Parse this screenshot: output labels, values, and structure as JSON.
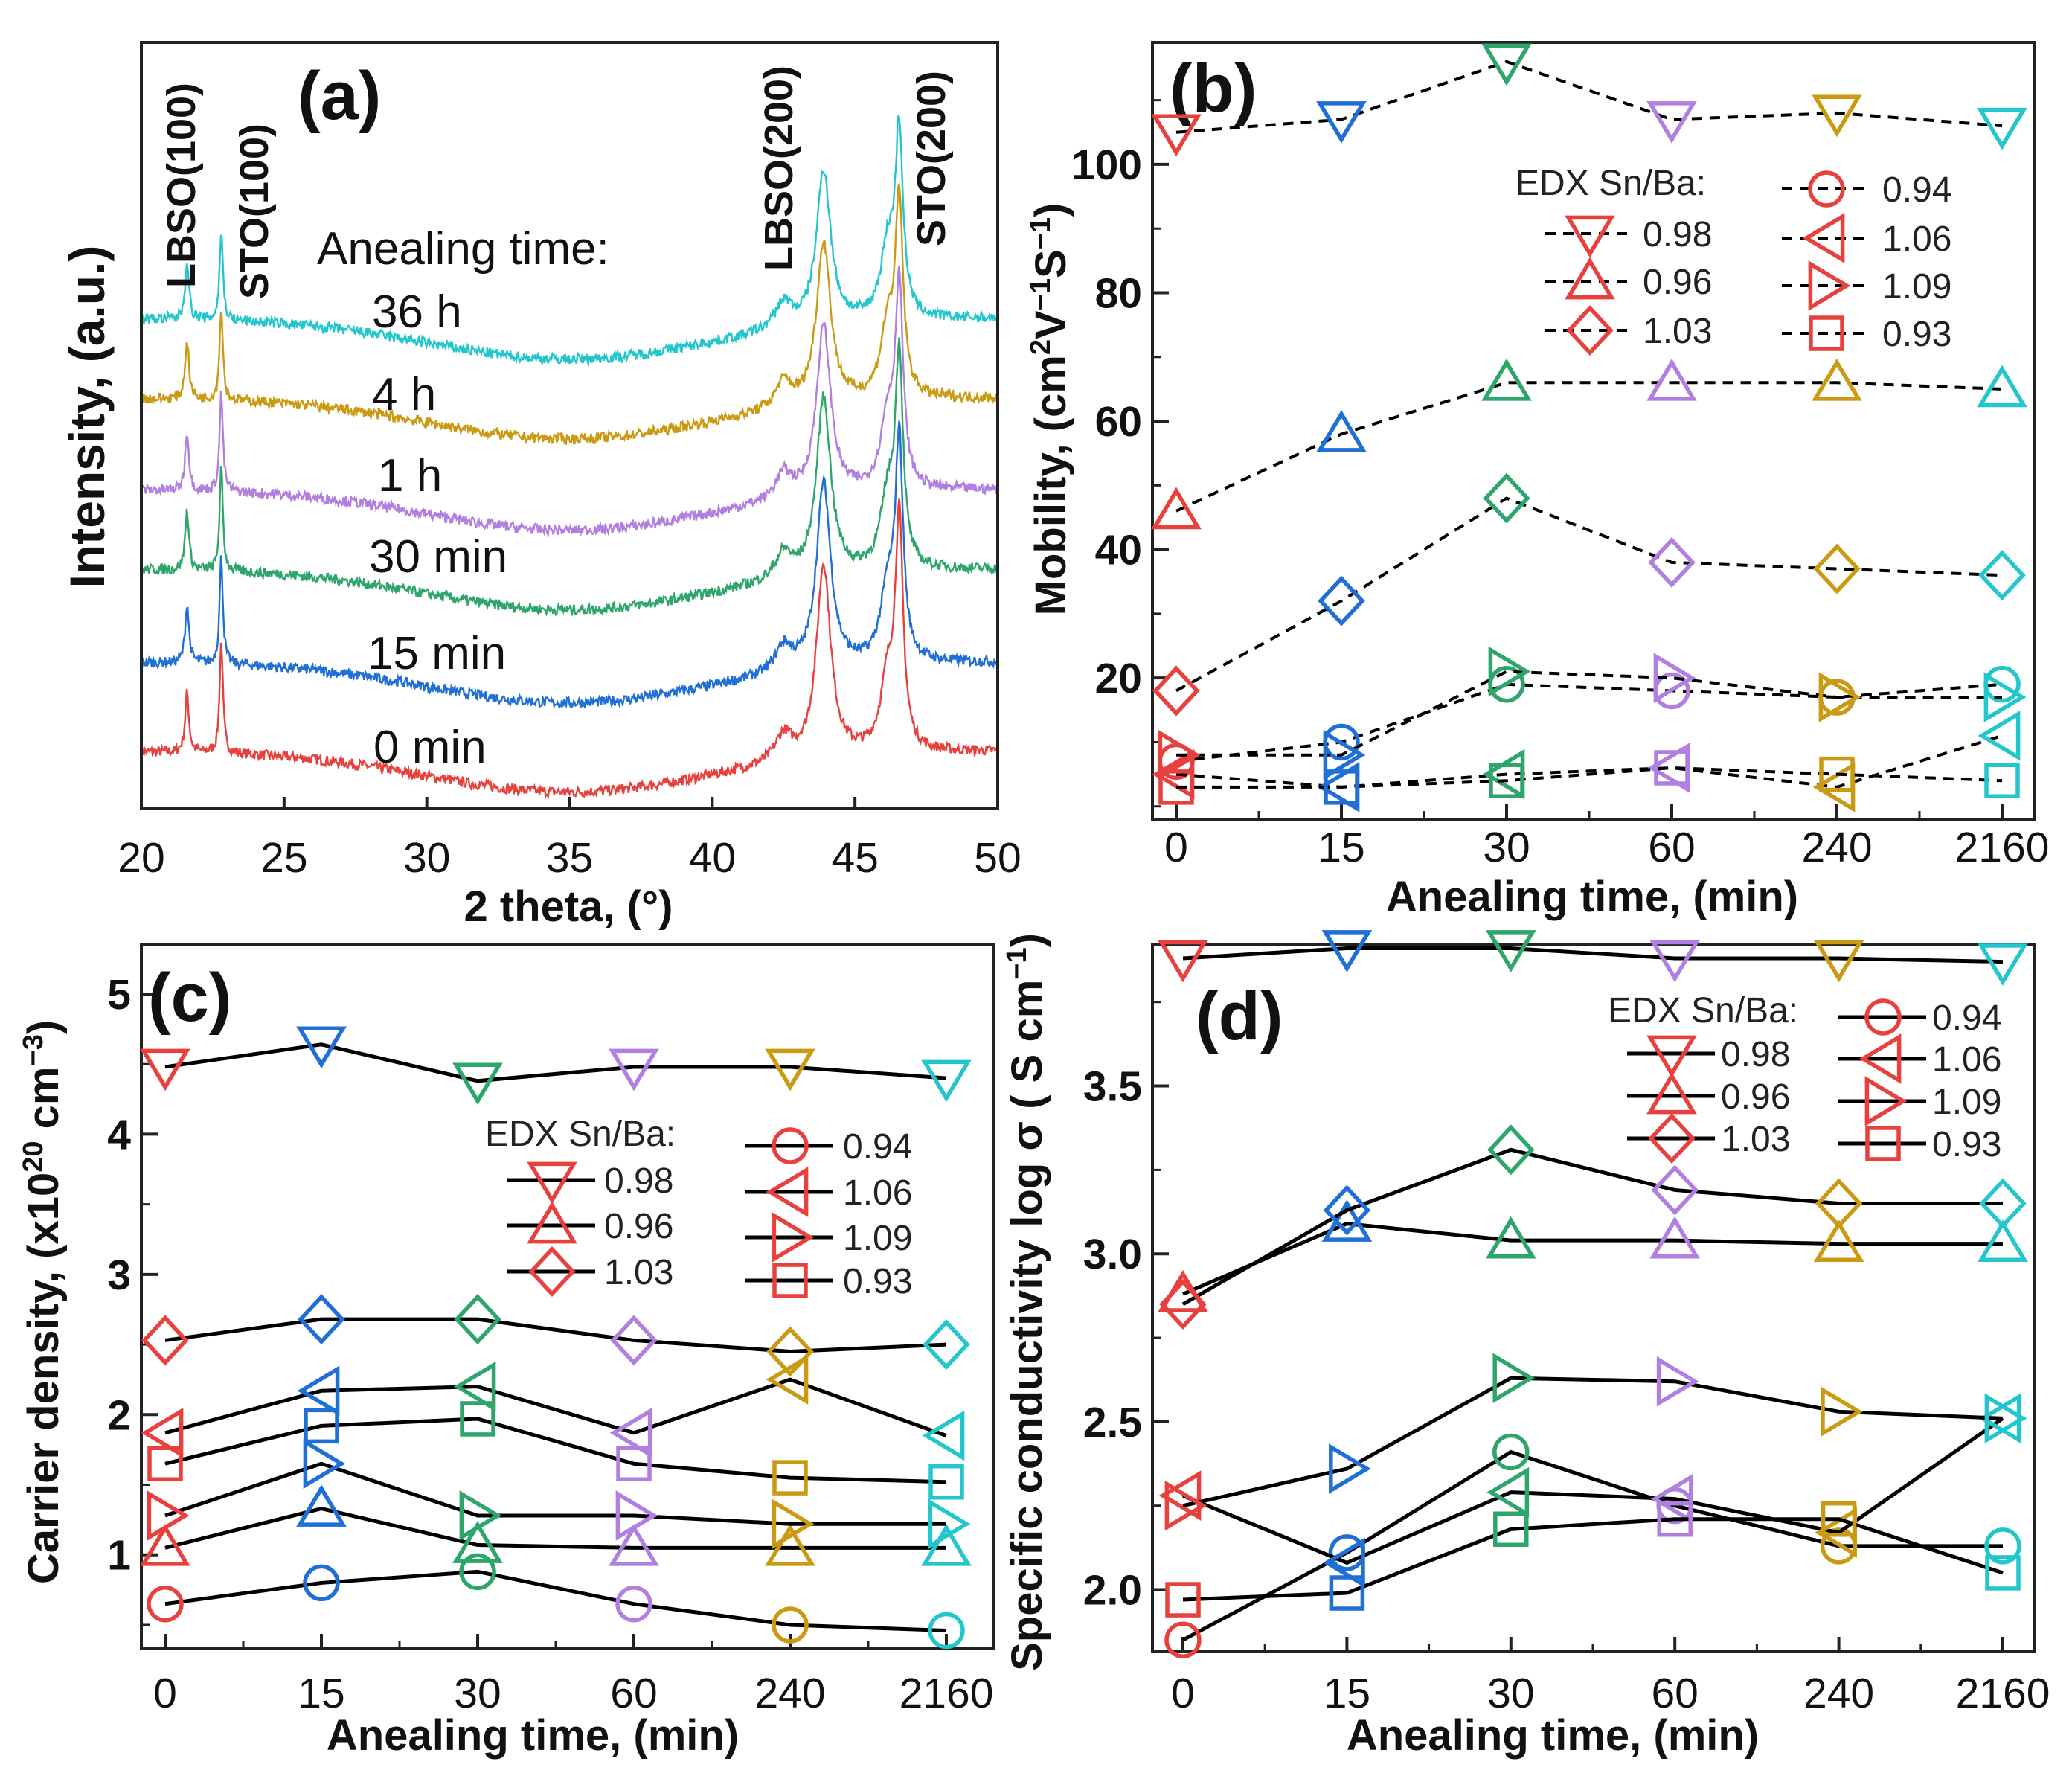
{
  "colors": {
    "times": [
      "#e8403d",
      "#1f6fd6",
      "#2ea56a",
      "#b07fe0",
      "#c99a12",
      "#22c6cc"
    ],
    "legend_marker": "#e8403d",
    "connector": "#000000"
  },
  "chart_data": [
    {
      "panel": "(a)",
      "type": "line",
      "xlabel": "2 theta, (°)",
      "ylabel": "Intensity, (a.u.)",
      "xlim": [
        20,
        50
      ],
      "xticks": [
        "20",
        "25",
        "30",
        "35",
        "40",
        "45",
        "50"
      ],
      "yticks": [],
      "annotation_title": "Anealing time:",
      "series": [
        {
          "name": "0 min"
        },
        {
          "name": "15 min"
        },
        {
          "name": "30 min"
        },
        {
          "name": "1 h"
        },
        {
          "name": "4 h"
        },
        {
          "name": "36 h"
        }
      ],
      "peaks": [
        {
          "label": "LBSO(100)",
          "x": 21.6
        },
        {
          "label": "STO(100)",
          "x": 22.8
        },
        {
          "label": "LBSO(200)",
          "x": 43.9
        },
        {
          "label": "STO(200)",
          "x": 46.5
        }
      ]
    },
    {
      "panel": "(b)",
      "type": "scatter",
      "line_style": "dashed",
      "xlabel": "Anealing time, (min)",
      "ylabel_parts": [
        {
          "t": "Mobility, (cm"
        },
        {
          "t": "2",
          "sup": true
        },
        {
          "t": "V"
        },
        {
          "t": "−1",
          "sup": true
        },
        {
          "t": "S"
        },
        {
          "t": "−1",
          "sup": true
        },
        {
          "t": ")"
        }
      ],
      "categories": [
        "0",
        "15",
        "30",
        "60",
        "240",
        "2160"
      ],
      "ylim": [
        -2,
        119
      ],
      "yticks": [
        "20",
        "40",
        "60",
        "80",
        "100"
      ],
      "legend_title": "EDX Sn/Ba:",
      "series": [
        {
          "name": "0.98",
          "marker": "triangle-down",
          "values": [
            105,
            107,
            116,
            107,
            108,
            106
          ]
        },
        {
          "name": "0.96",
          "marker": "triangle-up",
          "values": [
            46,
            58,
            66,
            66,
            66,
            65
          ]
        },
        {
          "name": "1.03",
          "marker": "diamond",
          "values": [
            18,
            32,
            48,
            38,
            37,
            36
          ]
        },
        {
          "name": "0.94",
          "marker": "circle",
          "values": [
            7,
            10,
            19,
            18,
            17,
            19
          ]
        },
        {
          "name": "1.06",
          "marker": "triangle-left",
          "values": [
            5,
            3,
            5,
            6,
            3,
            11
          ]
        },
        {
          "name": "1.09",
          "marker": "triangle-right",
          "values": [
            8,
            8,
            21,
            20,
            17,
            17
          ]
        },
        {
          "name": "0.93",
          "marker": "square",
          "values": [
            3,
            3,
            4,
            6,
            5,
            4
          ]
        }
      ]
    },
    {
      "panel": "(c)",
      "type": "scatter",
      "line_style": "solid",
      "xlabel": "Anealing time, (min)",
      "ylabel_parts": [
        {
          "t": "Carrier density, (x10"
        },
        {
          "t": "20",
          "sup": true
        },
        {
          "t": " cm"
        },
        {
          "t": "−3",
          "sup": true
        },
        {
          "t": ")"
        }
      ],
      "categories": [
        "0",
        "15",
        "30",
        "60",
        "240",
        "2160"
      ],
      "ylim": [
        0.33,
        5.35
      ],
      "yticks": [
        "1",
        "2",
        "3",
        "4",
        "5"
      ],
      "legend_title": "EDX Sn/Ba:",
      "series": [
        {
          "name": "0.98",
          "marker": "triangle-down",
          "values": [
            4.48,
            4.64,
            4.38,
            4.48,
            4.48,
            4.4
          ]
        },
        {
          "name": "0.96",
          "marker": "triangle-up",
          "values": [
            1.05,
            1.33,
            1.07,
            1.05,
            1.05,
            1.05
          ]
        },
        {
          "name": "1.03",
          "marker": "diamond",
          "values": [
            2.53,
            2.68,
            2.68,
            2.53,
            2.45,
            2.5
          ]
        },
        {
          "name": "0.94",
          "marker": "circle",
          "values": [
            0.65,
            0.8,
            0.88,
            0.65,
            0.5,
            0.46
          ]
        },
        {
          "name": "1.06",
          "marker": "triangle-left",
          "values": [
            1.87,
            2.17,
            2.2,
            1.87,
            2.25,
            1.85
          ]
        },
        {
          "name": "1.09",
          "marker": "triangle-right",
          "values": [
            1.28,
            1.65,
            1.28,
            1.28,
            1.22,
            1.22
          ]
        },
        {
          "name": "0.93",
          "marker": "square",
          "values": [
            1.65,
            1.92,
            1.97,
            1.65,
            1.55,
            1.52
          ]
        }
      ]
    },
    {
      "panel": "(d)",
      "type": "scatter",
      "line_style": "solid",
      "xlabel": "Anealing time, (min)",
      "ylabel_parts": [
        {
          "t": "Specific conductivity log σ ( S cm"
        },
        {
          "t": "−1",
          "sup": true
        },
        {
          "t": ")"
        }
      ],
      "categories": [
        "0",
        "15",
        "30",
        "60",
        "240",
        "2160"
      ],
      "ylim": [
        1.815,
        3.92
      ],
      "yticks": [
        "2.0",
        "2.5",
        "3.0",
        "3.5"
      ],
      "legend_title": "EDX Sn/Ba:",
      "series": [
        {
          "name": "0.98",
          "marker": "triangle-down",
          "values": [
            3.88,
            3.91,
            3.91,
            3.88,
            3.88,
            3.87
          ]
        },
        {
          "name": "0.96",
          "marker": "triangle-up",
          "values": [
            2.88,
            3.09,
            3.04,
            3.04,
            3.03,
            3.03
          ]
        },
        {
          "name": "1.03",
          "marker": "diamond",
          "values": [
            2.85,
            3.13,
            3.31,
            3.19,
            3.15,
            3.15
          ]
        },
        {
          "name": "0.94",
          "marker": "circle",
          "values": [
            1.85,
            2.11,
            2.41,
            2.25,
            2.13,
            2.13
          ]
        },
        {
          "name": "1.06",
          "marker": "triangle-left",
          "values": [
            2.28,
            2.08,
            2.29,
            2.27,
            2.17,
            2.51
          ]
        },
        {
          "name": "1.09",
          "marker": "triangle-right",
          "values": [
            2.25,
            2.36,
            2.63,
            2.62,
            2.53,
            2.51
          ]
        },
        {
          "name": "0.93",
          "marker": "square",
          "values": [
            1.97,
            1.99,
            2.18,
            2.21,
            2.21,
            2.05
          ]
        }
      ]
    }
  ]
}
